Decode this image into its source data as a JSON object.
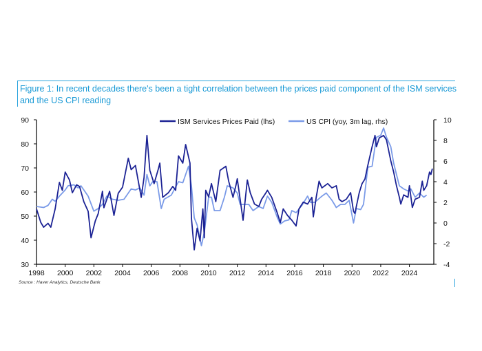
{
  "title": "Figure 1: In recent decades there's been a tight correlation between the prices paid component of the ISM services and the US CPI reading",
  "source": "Source : Haver Analytics, Deutsche Bank",
  "chart_data": {
    "type": "line",
    "title": "Figure 1: In recent decades there's been a tight correlation between the prices paid component of the ISM services and the US CPI reading",
    "xlabel": "",
    "ylabel_left": "",
    "ylabel_right": "",
    "xlim": [
      1998,
      2025.7
    ],
    "ylim_left": [
      30,
      90
    ],
    "ylim_right": [
      -4,
      10
    ],
    "x_ticks": [
      "1998",
      "2000",
      "2002",
      "2004",
      "2006",
      "2008",
      "2010",
      "2012",
      "2014",
      "2016",
      "2018",
      "2020",
      "2022",
      "2024"
    ],
    "y_ticks_left": [
      "30",
      "40",
      "50",
      "60",
      "70",
      "80",
      "90"
    ],
    "y_ticks_right": [
      "-4",
      "-2",
      "0",
      "2",
      "4",
      "6",
      "8",
      "10"
    ],
    "grid": false,
    "legend_position": "top-center",
    "series": [
      {
        "name": "ISM Services Prices Paid (lhs)",
        "axis": "left",
        "color": "#1b2294",
        "points": [
          [
            1998.0,
            53
          ],
          [
            1998.3,
            47.4
          ],
          [
            1998.5,
            45.4
          ],
          [
            1998.8,
            47
          ],
          [
            1999.0,
            45.4
          ],
          [
            1999.3,
            53
          ],
          [
            1999.6,
            64
          ],
          [
            1999.8,
            60.7
          ],
          [
            2000.0,
            68.3
          ],
          [
            2000.3,
            65
          ],
          [
            2000.5,
            59.7
          ],
          [
            2000.8,
            63
          ],
          [
            2001.0,
            62.3
          ],
          [
            2001.3,
            56
          ],
          [
            2001.6,
            52
          ],
          [
            2001.8,
            41
          ],
          [
            2002.1,
            48
          ],
          [
            2002.3,
            51
          ],
          [
            2002.6,
            60.3
          ],
          [
            2002.7,
            53.5
          ],
          [
            2003.1,
            60.3
          ],
          [
            2003.4,
            50.3
          ],
          [
            2003.7,
            59.5
          ],
          [
            2004.0,
            62
          ],
          [
            2004.4,
            74
          ],
          [
            2004.6,
            69.3
          ],
          [
            2004.9,
            71
          ],
          [
            2005.3,
            57.8
          ],
          [
            2005.5,
            66
          ],
          [
            2005.7,
            83.5
          ],
          [
            2005.9,
            69
          ],
          [
            2006.2,
            63.5
          ],
          [
            2006.5,
            69.7
          ],
          [
            2006.6,
            72
          ],
          [
            2006.8,
            57.8
          ],
          [
            2007.2,
            59.7
          ],
          [
            2007.5,
            62.3
          ],
          [
            2007.7,
            60.7
          ],
          [
            2007.9,
            75
          ],
          [
            2008.2,
            72
          ],
          [
            2008.4,
            79.7
          ],
          [
            2008.7,
            72
          ],
          [
            2008.8,
            49.2
          ],
          [
            2009.0,
            36
          ],
          [
            2009.2,
            45
          ],
          [
            2009.4,
            39.7
          ],
          [
            2009.6,
            53
          ],
          [
            2009.7,
            41
          ],
          [
            2009.8,
            60.7
          ],
          [
            2010.0,
            58
          ],
          [
            2010.2,
            63.5
          ],
          [
            2010.5,
            56
          ],
          [
            2010.8,
            69
          ],
          [
            2011.2,
            70.7
          ],
          [
            2011.4,
            64.5
          ],
          [
            2011.7,
            57.8
          ],
          [
            2011.9,
            62.6
          ],
          [
            2012.0,
            65.5
          ],
          [
            2012.4,
            48.3
          ],
          [
            2012.7,
            65
          ],
          [
            2012.9,
            59.7
          ],
          [
            2013.2,
            55
          ],
          [
            2013.5,
            54
          ],
          [
            2013.7,
            57
          ],
          [
            2014.0,
            59.7
          ],
          [
            2014.1,
            60.7
          ],
          [
            2014.4,
            57.8
          ],
          [
            2014.8,
            51.1
          ],
          [
            2015.0,
            47.3
          ],
          [
            2015.2,
            53
          ],
          [
            2015.5,
            50.3
          ],
          [
            2015.8,
            48.3
          ],
          [
            2016.1,
            45.9
          ],
          [
            2016.3,
            53
          ],
          [
            2016.6,
            55.8
          ],
          [
            2016.9,
            55
          ],
          [
            2017.2,
            57.8
          ],
          [
            2017.3,
            49.7
          ],
          [
            2017.5,
            57.8
          ],
          [
            2017.7,
            64.5
          ],
          [
            2017.9,
            61.7
          ],
          [
            2018.3,
            63.5
          ],
          [
            2018.6,
            61.7
          ],
          [
            2018.9,
            62.6
          ],
          [
            2019.1,
            57
          ],
          [
            2019.3,
            56
          ],
          [
            2019.6,
            57
          ],
          [
            2019.9,
            59.7
          ],
          [
            2020.1,
            52
          ],
          [
            2020.2,
            51.1
          ],
          [
            2020.5,
            59.7
          ],
          [
            2020.7,
            63.5
          ],
          [
            2020.9,
            65.4
          ],
          [
            2021.1,
            71.1
          ],
          [
            2021.4,
            78.8
          ],
          [
            2021.6,
            83.5
          ],
          [
            2021.7,
            78.8
          ],
          [
            2021.9,
            82.5
          ],
          [
            2022.2,
            83.5
          ],
          [
            2022.4,
            81.6
          ],
          [
            2022.7,
            73
          ],
          [
            2022.9,
            68.3
          ],
          [
            2023.1,
            62.6
          ],
          [
            2023.3,
            57.8
          ],
          [
            2023.4,
            55
          ],
          [
            2023.6,
            58.8
          ],
          [
            2023.9,
            57.8
          ],
          [
            2024.0,
            62.6
          ],
          [
            2024.2,
            53.6
          ],
          [
            2024.4,
            57
          ],
          [
            2024.7,
            57.8
          ],
          [
            2024.9,
            64.5
          ],
          [
            2025.0,
            60.7
          ],
          [
            2025.2,
            62.6
          ],
          [
            2025.4,
            68.3
          ],
          [
            2025.5,
            67.3
          ],
          [
            2025.6,
            69.7
          ]
        ]
      },
      {
        "name": "US CPI (yoy, 3m lag, rhs)",
        "axis": "right",
        "color": "#7b9be8",
        "points": [
          [
            1998.0,
            1.6
          ],
          [
            1998.5,
            1.5
          ],
          [
            1998.8,
            1.7
          ],
          [
            1999.1,
            2.3
          ],
          [
            1999.3,
            2.1
          ],
          [
            1999.6,
            2.6
          ],
          [
            2000.0,
            3.2
          ],
          [
            2000.2,
            3.6
          ],
          [
            2000.6,
            3.7
          ],
          [
            2000.9,
            3.4
          ],
          [
            2001.1,
            3.6
          ],
          [
            2001.6,
            2.6
          ],
          [
            2002.0,
            1.15
          ],
          [
            2002.3,
            1.4
          ],
          [
            2002.6,
            1.8
          ],
          [
            2002.9,
            2.6
          ],
          [
            2003.3,
            2.3
          ],
          [
            2003.7,
            2.2
          ],
          [
            2004.1,
            2.3
          ],
          [
            2004.6,
            3.3
          ],
          [
            2004.9,
            3.2
          ],
          [
            2005.2,
            3.4
          ],
          [
            2005.5,
            2.7
          ],
          [
            2005.7,
            4.7
          ],
          [
            2005.9,
            3.6
          ],
          [
            2006.1,
            4.0
          ],
          [
            2006.4,
            4.0
          ],
          [
            2006.7,
            1.4
          ],
          [
            2006.9,
            2.3
          ],
          [
            2007.4,
            2.7
          ],
          [
            2007.9,
            4.0
          ],
          [
            2008.2,
            3.9
          ],
          [
            2008.6,
            5.5
          ],
          [
            2008.8,
            3.6
          ],
          [
            2009.0,
            0.5
          ],
          [
            2009.2,
            -0.2
          ],
          [
            2009.5,
            -2.2
          ],
          [
            2009.7,
            -0.9
          ],
          [
            2010.0,
            2.5
          ],
          [
            2010.2,
            2.5
          ],
          [
            2010.4,
            1.2
          ],
          [
            2010.8,
            1.2
          ],
          [
            2011.1,
            2.5
          ],
          [
            2011.3,
            3.6
          ],
          [
            2011.7,
            3.4
          ],
          [
            2012.0,
            2.9
          ],
          [
            2012.2,
            1.8
          ],
          [
            2012.5,
            1.8
          ],
          [
            2012.8,
            1.8
          ],
          [
            2013.1,
            1.2
          ],
          [
            2013.5,
            1.6
          ],
          [
            2013.8,
            1.4
          ],
          [
            2014.1,
            2.6
          ],
          [
            2014.4,
            2.0
          ],
          [
            2014.8,
            0.5
          ],
          [
            2015.0,
            -0.1
          ],
          [
            2015.3,
            0.2
          ],
          [
            2015.6,
            0.3
          ],
          [
            2015.8,
            1.2
          ],
          [
            2016.1,
            1.0
          ],
          [
            2016.5,
            1.7
          ],
          [
            2016.9,
            2.6
          ],
          [
            2017.1,
            2.0
          ],
          [
            2017.4,
            2.0
          ],
          [
            2017.9,
            2.6
          ],
          [
            2018.2,
            2.9
          ],
          [
            2018.6,
            2.2
          ],
          [
            2018.9,
            1.5
          ],
          [
            2019.2,
            1.8
          ],
          [
            2019.5,
            1.8
          ],
          [
            2019.8,
            2.2
          ],
          [
            2020.1,
            0.0
          ],
          [
            2020.3,
            1.4
          ],
          [
            2020.6,
            1.3
          ],
          [
            2020.8,
            1.8
          ],
          [
            2021.1,
            5.4
          ],
          [
            2021.4,
            5.5
          ],
          [
            2021.6,
            7.4
          ],
          [
            2021.7,
            8.3
          ],
          [
            2022.0,
            8.5
          ],
          [
            2022.2,
            9.2
          ],
          [
            2022.4,
            8.3
          ],
          [
            2022.7,
            7.4
          ],
          [
            2022.9,
            5.8
          ],
          [
            2023.1,
            4.7
          ],
          [
            2023.3,
            3.6
          ],
          [
            2023.6,
            3.3
          ],
          [
            2023.9,
            3.1
          ],
          [
            2024.1,
            3.3
          ],
          [
            2024.4,
            2.5
          ],
          [
            2024.7,
            2.9
          ],
          [
            2025.0,
            2.5
          ],
          [
            2025.2,
            2.7
          ]
        ]
      }
    ]
  }
}
